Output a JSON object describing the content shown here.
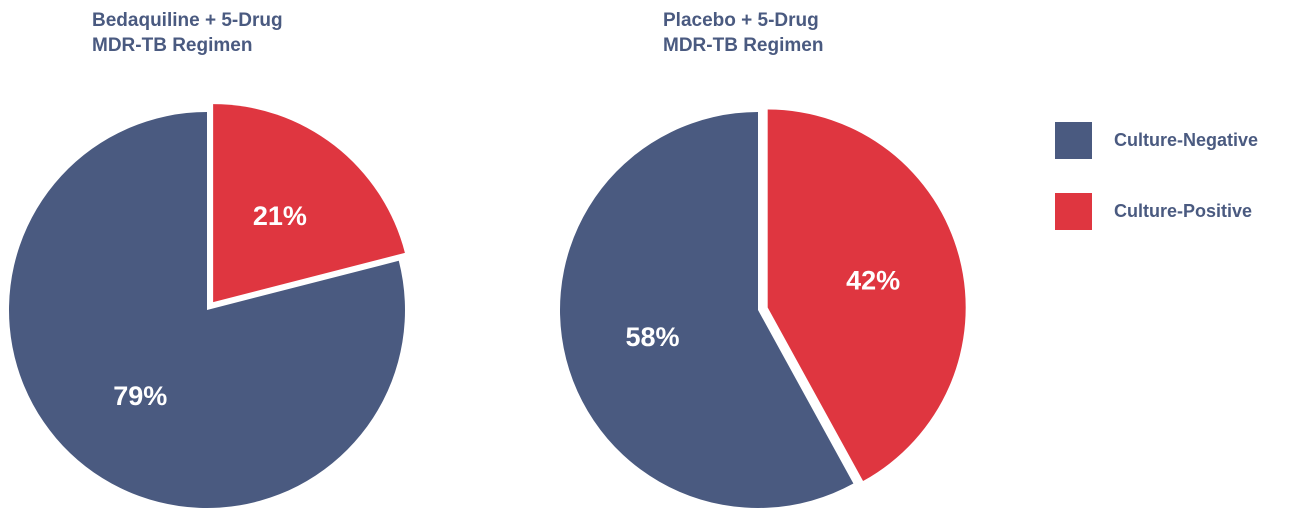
{
  "chart_data": [
    {
      "type": "pie",
      "title_lines": [
        "Bedaquiline + 5-Drug",
        "MDR-TB Regimen"
      ],
      "slices": [
        {
          "label": "Culture-Positive",
          "value": 21,
          "display": "21%"
        },
        {
          "label": "Culture-Negative",
          "value": 79,
          "display": "79%"
        }
      ]
    },
    {
      "type": "pie",
      "title_lines": [
        "Placebo + 5-Drug",
        "MDR-TB Regimen"
      ],
      "slices": [
        {
          "label": "Culture-Positive",
          "value": 42,
          "display": "42%"
        },
        {
          "label": "Culture-Negative",
          "value": 58,
          "display": "58%"
        }
      ]
    }
  ],
  "legend": {
    "placement": "right",
    "items": [
      {
        "label": "Culture-Negative",
        "color": "#4a5a80"
      },
      {
        "label": "Culture-Positive",
        "color": "#df3640"
      }
    ]
  },
  "colors": {
    "Culture-Negative": "#4a5a80",
    "Culture-Positive": "#df3640",
    "title": "#4a5a80",
    "slice_label": "#ffffff"
  }
}
